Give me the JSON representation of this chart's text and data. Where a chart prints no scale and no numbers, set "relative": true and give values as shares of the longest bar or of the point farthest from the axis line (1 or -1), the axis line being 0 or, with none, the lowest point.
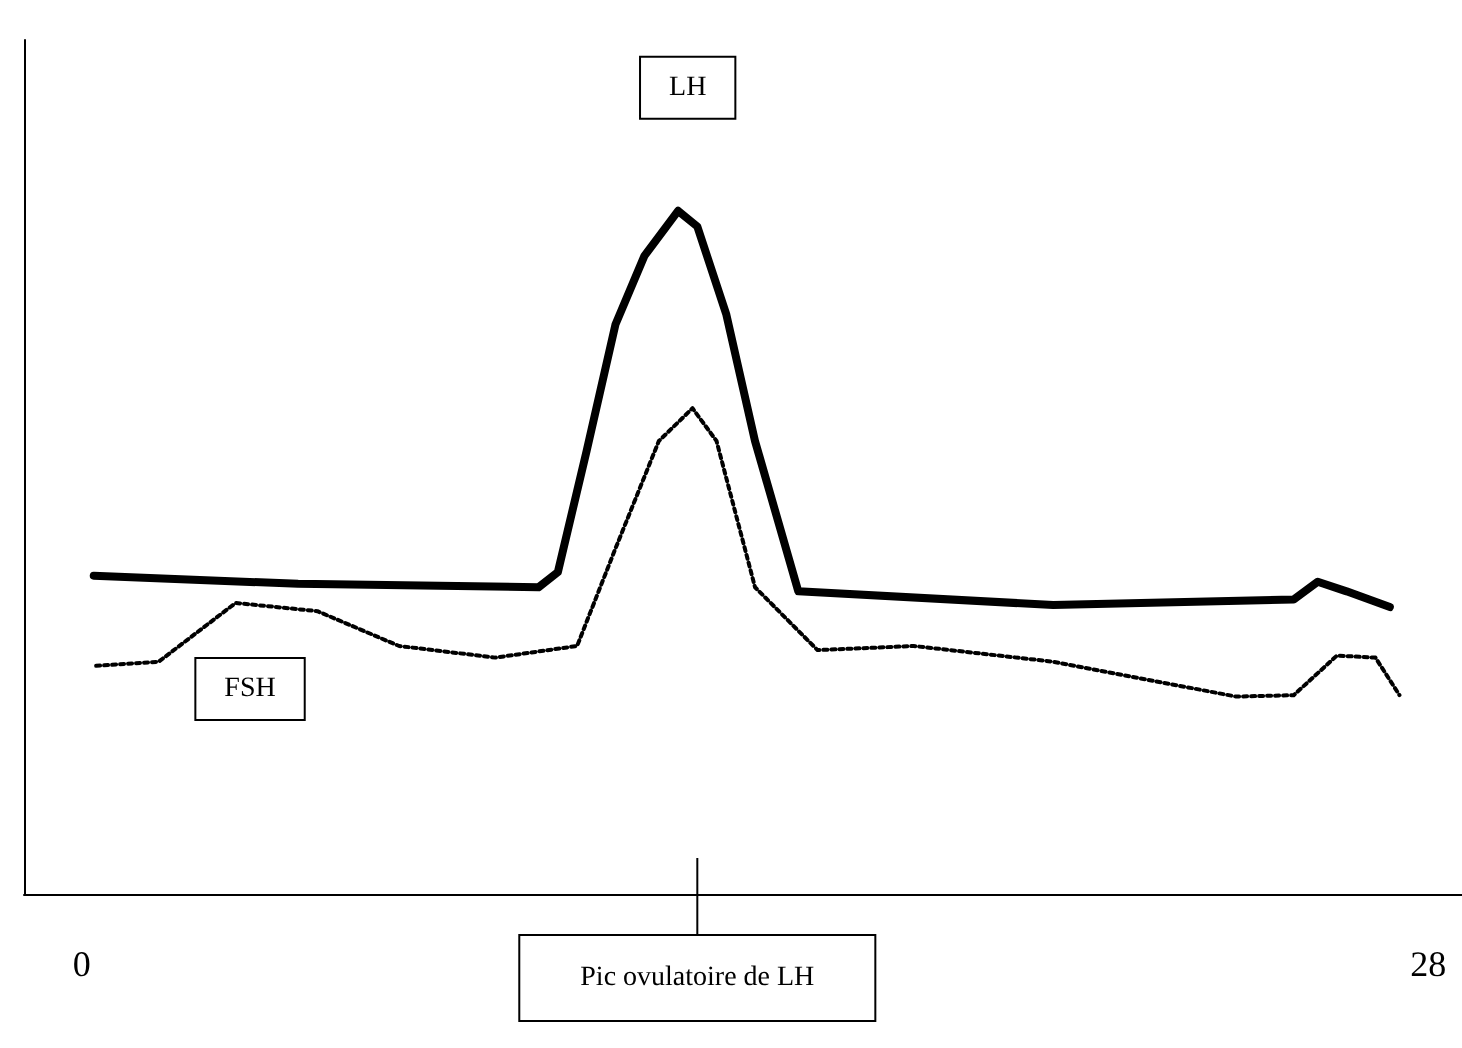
{
  "chart_data": {
    "type": "line",
    "relative": true,
    "xlim": [
      -1.2,
      28.7
    ],
    "xticks": [
      0,
      28
    ],
    "tick_labels": "x",
    "grid": false,
    "marker": "none",
    "series": [
      {
        "name": "LH",
        "color": "#000000",
        "line_style": "solid",
        "x": [
          0.25,
          4.5,
          9.5,
          9.9,
          10.5,
          11.1,
          11.7,
          12.4,
          12.8,
          13.4,
          14.0,
          14.9,
          20.2,
          25.2,
          25.7,
          26.3,
          27.2
        ],
        "values": [
          0.466,
          0.454,
          0.449,
          0.471,
          0.649,
          0.834,
          0.934,
          1,
          0.977,
          0.849,
          0.663,
          0.443,
          0.423,
          0.431,
          0.457,
          0.443,
          0.42
        ]
      },
      {
        "name": "FSH",
        "color": "#000000",
        "line_style": "dotted",
        "x": [
          0.3,
          1.6,
          3.2,
          4.9,
          6.6,
          8.6,
          10.3,
          11.1,
          12.0,
          12.7,
          13.2,
          14.0,
          15.3,
          17.3,
          20.2,
          24.0,
          25.2,
          26.1,
          26.9,
          27.4
        ],
        "values": [
          0.334,
          0.34,
          0.426,
          0.414,
          0.363,
          0.346,
          0.363,
          0.506,
          0.663,
          0.711,
          0.663,
          0.449,
          0.357,
          0.363,
          0.34,
          0.289,
          0.291,
          0.349,
          0.346,
          0.291
        ]
      }
    ],
    "ref_lines": [
      {
        "axis": "x",
        "value": 12.8,
        "label": "Pic ovulatoire de LH"
      }
    ]
  }
}
